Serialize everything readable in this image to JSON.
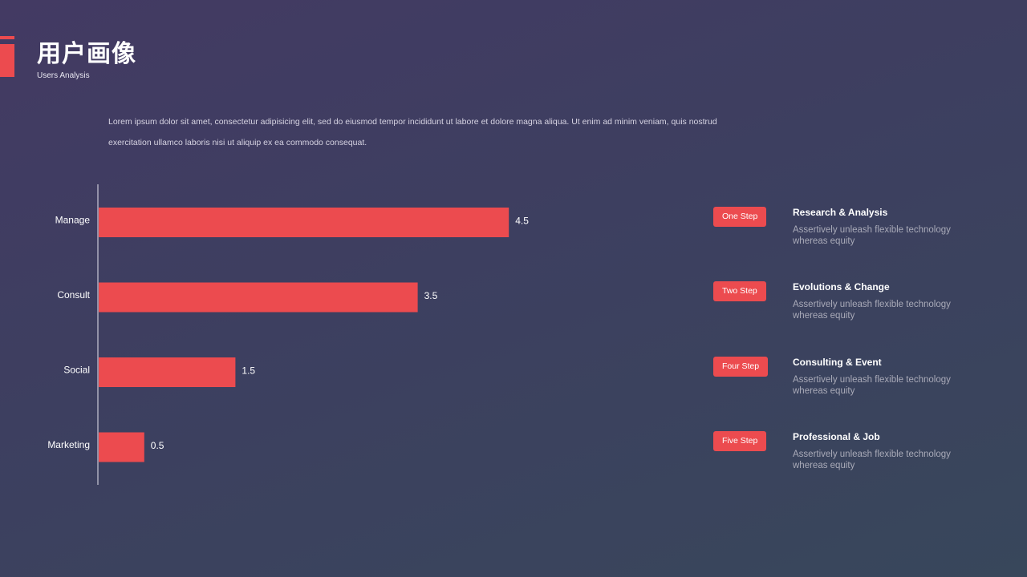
{
  "header": {
    "title": "用户画像",
    "subtitle": "Users Analysis"
  },
  "intro": {
    "line1": "Lorem ipsum dolor sit amet,  consectetur adipisicing elit, sed do eiusmod tempor incididunt ut labore et dolore magna  aliqua.  Ut  enim  ad minim  veniam,  quis nostrud",
    "line2": "exercitation ullamco  laboris nisi ut aliquip  ex ea commodo  consequat."
  },
  "colors": {
    "accent": "#ec4b4f",
    "axis": "#e6e4ee"
  },
  "chart_data": {
    "type": "bar",
    "orientation": "horizontal",
    "categories": [
      "Manage",
      "Consult",
      "Social",
      "Marketing"
    ],
    "values": [
      4.5,
      3.5,
      1.5,
      0.5
    ],
    "xlim": [
      0,
      5
    ],
    "grid": false,
    "legend": "none",
    "title": "",
    "xlabel": "",
    "ylabel": ""
  },
  "steps": [
    {
      "badge": "One Step",
      "title": "Research & Analysis",
      "desc": "Assertively unleash flexible technology whereas equity"
    },
    {
      "badge": "Two Step",
      "title": "Evolutions  & Change",
      "desc": "Assertively unleash flexible technology whereas equity"
    },
    {
      "badge": "Four Step",
      "title": "Consulting  & Event",
      "desc": "Assertively unleash flexible technology whereas equity"
    },
    {
      "badge": "Five Step",
      "title": "Professional & Job",
      "desc": "Assertively unleash flexible technology whereas equity"
    }
  ]
}
